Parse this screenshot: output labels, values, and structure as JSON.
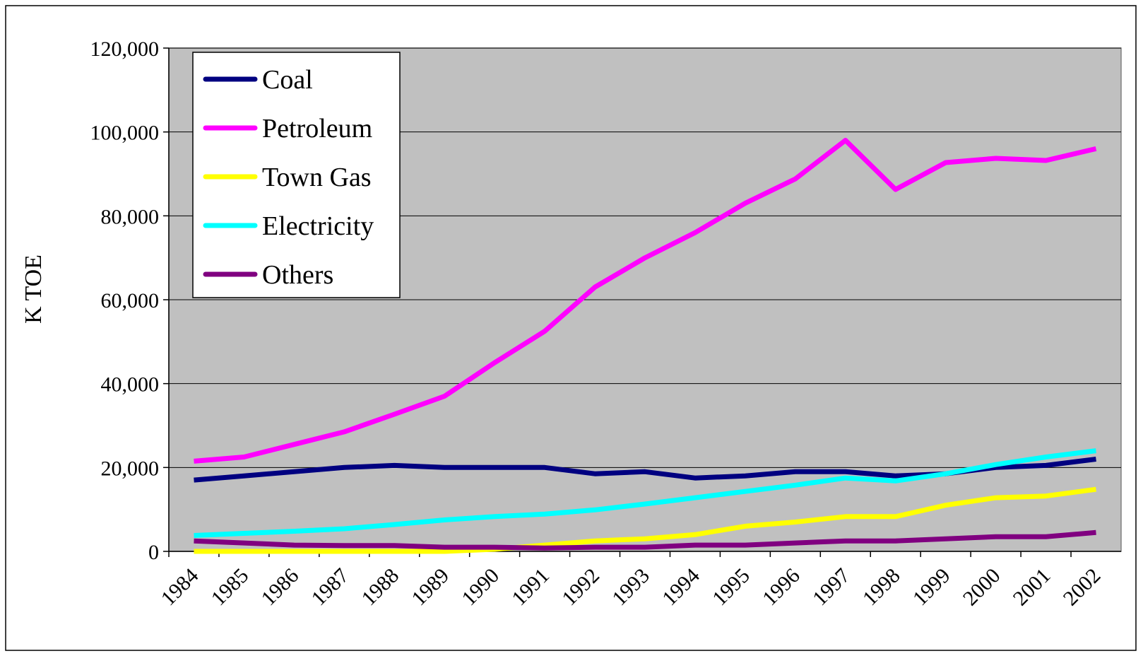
{
  "chart_data": {
    "type": "line",
    "y_label": "K TOE",
    "categories": [
      "1984",
      "1985",
      "1986",
      "1987",
      "1988",
      "1989",
      "1990",
      "1991",
      "1992",
      "1993",
      "1994",
      "1995",
      "1996",
      "1997",
      "1998",
      "1999",
      "2000",
      "2001",
      "2002"
    ],
    "series": [
      {
        "name": "Coal",
        "color": "#000080",
        "values": [
          17000,
          18000,
          19000,
          20000,
          20500,
          20000,
          20000,
          20000,
          18500,
          19000,
          17500,
          18000,
          19000,
          19000,
          18000,
          18500,
          20000,
          20500,
          22000
        ]
      },
      {
        "name": "Petroleum",
        "color": "#ff00ff",
        "values": [
          21500,
          22500,
          25500,
          28500,
          32700,
          37000,
          45000,
          52500,
          63000,
          70000,
          76000,
          83000,
          88800,
          98000,
          86300,
          92700,
          93700,
          93200,
          96000
        ]
      },
      {
        "name": "Town Gas",
        "color": "#ffff00",
        "values": [
          0,
          0,
          0,
          0,
          0,
          0,
          500,
          1500,
          2500,
          3000,
          4000,
          6000,
          7000,
          8300,
          8300,
          11000,
          12800,
          13200,
          14800
        ]
      },
      {
        "name": "Electricity",
        "color": "#00ffff",
        "values": [
          3800,
          4300,
          4800,
          5400,
          6400,
          7500,
          8300,
          8900,
          9900,
          11300,
          12800,
          14300,
          15800,
          17500,
          16800,
          18500,
          20700,
          22500,
          24000
        ]
      },
      {
        "name": "Others",
        "color": "#800080",
        "values": [
          2500,
          2000,
          1500,
          1400,
          1400,
          1000,
          1000,
          800,
          1000,
          1000,
          1500,
          1500,
          2000,
          2500,
          2500,
          3000,
          3500,
          3500,
          4500
        ]
      }
    ],
    "ylim": [
      0,
      120000
    ],
    "yticks": [
      0,
      {
        "value": 20000,
        "label": "20,000"
      },
      {
        "value": 40000,
        "label": "40,000"
      },
      {
        "value": 60000,
        "label": "60,000"
      },
      {
        "value": 80000,
        "label": "80,000"
      },
      {
        "value": 100000,
        "label": "100,000"
      },
      {
        "value": 120000,
        "label": "120,000"
      }
    ],
    "grid": true,
    "legend": "top-left",
    "plot_background": "#c0c0c0"
  }
}
